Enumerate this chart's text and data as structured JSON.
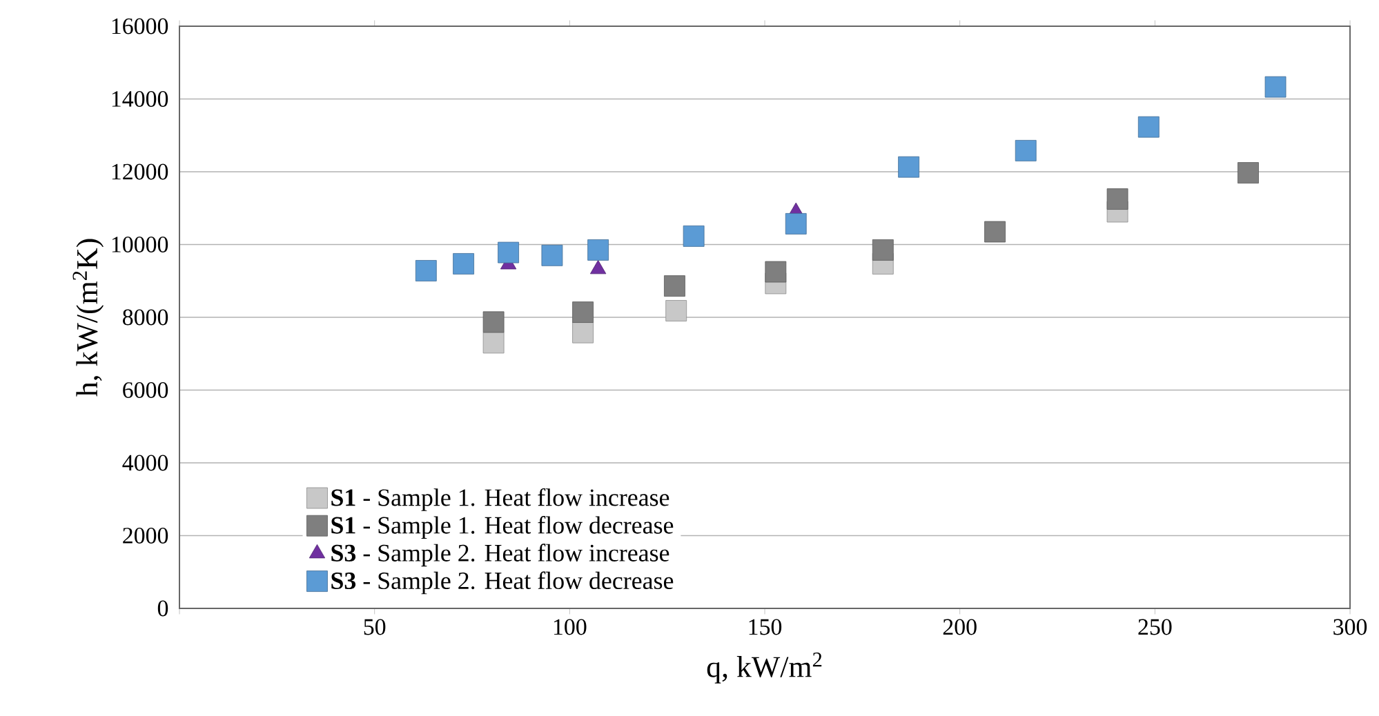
{
  "chart_data": {
    "type": "scatter",
    "xlabel": "q, kW/m$^{2}$",
    "ylabel": "h, kW/(m$^{2}$K)",
    "xlim": [
      0,
      300
    ],
    "xticks": [
      {
        "value": 0,
        "label": null
      },
      50,
      100,
      150,
      200,
      250,
      300
    ],
    "ylim": [
      0,
      16000
    ],
    "yticks": [
      0,
      2000,
      4000,
      6000,
      8000,
      10000,
      12000,
      14000,
      16000
    ],
    "grid": "y",
    "legend": "bottom left",
    "series": [
      {
        "name": "**S1** - Sample 1. Heat flow increase",
        "color": "#c8c8c8",
        "marker": "square",
        "x": [
          80.5,
          103.4,
          127.3,
          152.8,
          180.3,
          240.4
        ],
        "values": [
          7300,
          7580,
          8180,
          8930,
          9470,
          10900
        ]
      },
      {
        "name": "**S1** - Sample 1. Heat flow decrease",
        "color": "#7f7f7f",
        "marker": "square",
        "x": [
          80.5,
          103.4,
          126.9,
          152.8,
          180.3,
          209.0,
          240.4,
          273.9
        ],
        "values": [
          7870,
          8140,
          8860,
          9250,
          9850,
          10350,
          11250,
          11970
        ]
      },
      {
        "name": "**S3** - Sample 2. Heat flow increase",
        "color": "#7030a0",
        "marker": "triangle",
        "x": [
          84.3,
          107.3,
          158.0
        ],
        "values": [
          9450,
          9320,
          10900
        ]
      },
      {
        "name": "**S3** - Sample 2. Heat flow decrease",
        "color": "#5b9bd5",
        "marker": "square",
        "x": [
          63.2,
          72.8,
          84.3,
          95.5,
          107.3,
          131.8,
          158.0,
          186.9,
          216.9,
          248.4,
          280.9
        ],
        "values": [
          9280,
          9470,
          9780,
          9700,
          9850,
          10230,
          10570,
          12130,
          12580,
          13230,
          14330
        ]
      }
    ]
  }
}
